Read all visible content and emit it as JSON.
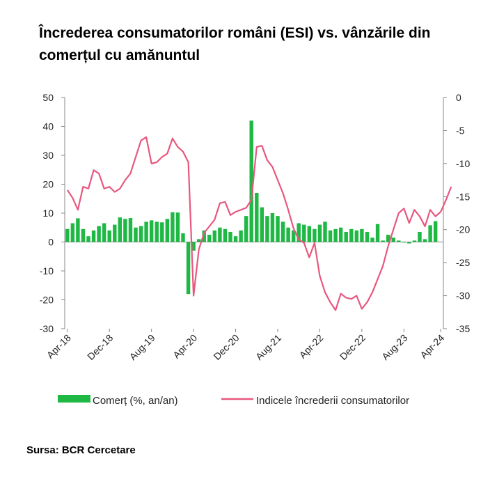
{
  "title": "Încrederea consumatorilor români (ESI) vs. vânzările din comerțul cu amănuntul",
  "source": "Sursa: BCR Cercetare",
  "chart_data": {
    "type": "bar+line",
    "title": "Încrederea consumatorilor români (ESI) vs. vânzările din comerțul cu amănuntul",
    "x_start": "Apr-18",
    "x_ticks": [
      "Apr-18",
      "Dec-18",
      "Aug-19",
      "Apr-20",
      "Dec-20",
      "Aug-21",
      "Apr-22",
      "Dec-22",
      "Aug-23",
      "Apr-24"
    ],
    "y_left": {
      "min": -30,
      "max": 50,
      "ticks": [
        50,
        40,
        30,
        20,
        10,
        0,
        -10,
        -20,
        -30
      ]
    },
    "y_right": {
      "min": -35,
      "max": 0,
      "ticks": [
        0,
        -5,
        -10,
        -15,
        -20,
        -25,
        -30,
        -35
      ]
    },
    "legend_position": "bottom",
    "colors": {
      "bars": "#1fb845",
      "line": "#e8577f"
    },
    "series": [
      {
        "name": "Comerț (%, an/an)",
        "type": "bar",
        "axis": "left",
        "values": [
          4.5,
          6.5,
          8.2,
          4.5,
          2,
          4,
          5.5,
          6.5,
          4,
          6,
          8.5,
          8,
          8.3,
          5,
          5.5,
          7,
          7.5,
          7,
          6.8,
          8,
          10.3,
          10.2,
          3,
          -18,
          -3,
          1,
          4,
          2.5,
          4,
          5,
          4.5,
          3.5,
          2,
          4,
          9,
          42,
          17,
          12,
          9,
          10,
          9,
          7,
          5,
          4,
          6.5,
          6,
          5.5,
          4.5,
          6,
          7,
          4,
          4.5,
          5,
          3.5,
          4.5,
          4,
          4.5,
          3.5,
          1.5,
          6.2,
          0.5,
          2.5,
          1.5,
          0.5,
          -0.2,
          -0.5,
          0.5,
          3.5,
          1,
          5.8,
          7.2,
          0
        ]
      },
      {
        "name": "Indicele încrederii consumatorilor",
        "type": "line",
        "axis": "right",
        "values": [
          -14,
          -15.2,
          -17,
          -13.5,
          -13.8,
          -11,
          -11.5,
          -13.8,
          -13.5,
          -14.3,
          -13.8,
          -12.5,
          -11.5,
          -9,
          -6.5,
          -6,
          -10,
          -9.8,
          -9,
          -8.5,
          -6.2,
          -7.5,
          -8.2,
          -9.8,
          -30,
          -23,
          -20.5,
          -19.5,
          -18.5,
          -16,
          -15.8,
          -17.8,
          -17.3,
          -17,
          -16.7,
          -15.5,
          -7.5,
          -7.3,
          -9.5,
          -10.5,
          -12.5,
          -14.5,
          -17,
          -19.8,
          -21.5,
          -22,
          -24.2,
          -22,
          -27,
          -29.5,
          -31,
          -32.2,
          -29.7,
          -30.3,
          -30.5,
          -30,
          -32,
          -31,
          -29.5,
          -27.5,
          -25.5,
          -22.5,
          -20,
          -17.5,
          -16.8,
          -19,
          -17,
          -18,
          -19.5,
          -17,
          -18,
          -17.3,
          -15.5,
          -13.5
        ]
      }
    ]
  }
}
